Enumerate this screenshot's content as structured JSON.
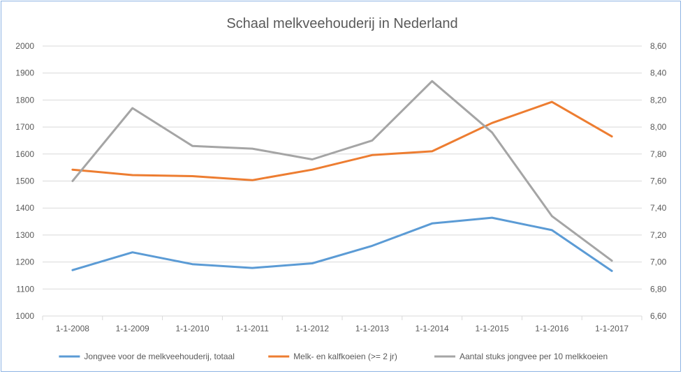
{
  "chart_data": {
    "type": "line",
    "title": "Schaal melkveehouderij in Nederland",
    "categories": [
      "1-1-2008",
      "1-1-2009",
      "1-1-2010",
      "1-1-2011",
      "1-1-2012",
      "1-1-2013",
      "1-1-2014",
      "1-1-2015",
      "1-1-2016",
      "1-1-2017"
    ],
    "y_left": {
      "range": [
        1000,
        2000
      ],
      "ticks": [
        "1000",
        "1100",
        "1200",
        "1300",
        "1400",
        "1500",
        "1600",
        "1700",
        "1800",
        "1900",
        "2000"
      ]
    },
    "y_right": {
      "range": [
        6.6,
        8.6
      ],
      "ticks": [
        "6,60",
        "6,80",
        "7,00",
        "7,20",
        "7,40",
        "7,60",
        "7,80",
        "8,00",
        "8,20",
        "8,40",
        "8,60"
      ]
    },
    "grid": true,
    "legend_position": "bottom",
    "series": [
      {
        "name": "Jongvee voor de melkveehouderij, totaal",
        "axis": "left",
        "color": "#5b9bd5",
        "values": [
          1170,
          1236,
          1192,
          1178,
          1195,
          1260,
          1343,
          1364,
          1318,
          1167
        ]
      },
      {
        "name": "Melk- en kalfkoeien (>= 2 jr)",
        "axis": "left",
        "color": "#ed7d31",
        "values": [
          1542,
          1522,
          1518,
          1503,
          1542,
          1596,
          1610,
          1715,
          1793,
          1665
        ]
      },
      {
        "name": "Aantal stuks jongvee per 10 melkkoeien",
        "axis": "right",
        "color": "#a5a5a5",
        "values": [
          7.6,
          8.14,
          7.86,
          7.84,
          7.76,
          7.9,
          8.34,
          7.96,
          7.34,
          7.01
        ]
      }
    ]
  }
}
